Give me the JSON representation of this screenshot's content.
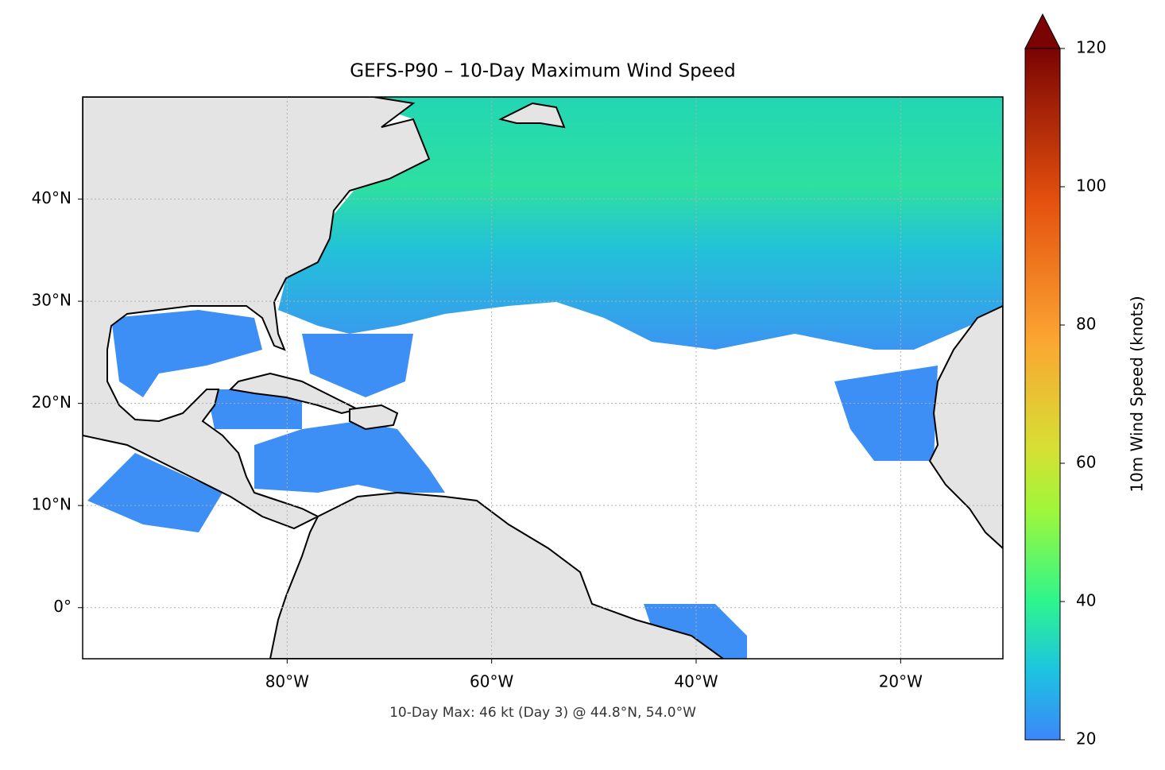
{
  "chart_data": {
    "type": "map",
    "title": "GEFS-P90 – 10-Day Maximum Wind Speed",
    "xlim": [
      -100,
      -10
    ],
    "ylim": [
      -5,
      50
    ],
    "xticks": [
      {
        "value": -80,
        "label": "80°W"
      },
      {
        "value": -60,
        "label": "60°W"
      },
      {
        "value": -40,
        "label": "40°W"
      },
      {
        "value": -20,
        "label": "20°W"
      }
    ],
    "yticks": [
      {
        "value": 0,
        "label": "0°"
      },
      {
        "value": 10,
        "label": "10°N"
      },
      {
        "value": 20,
        "label": "20°N"
      },
      {
        "value": 30,
        "label": "30°N"
      },
      {
        "value": 40,
        "label": "40°N"
      }
    ],
    "grid": true,
    "colorbar": {
      "label": "10m Wind Speed (knots)",
      "lim": [
        20,
        120
      ],
      "ticks": [
        20,
        40,
        60,
        80,
        100,
        120
      ]
    },
    "annotation": "10-Day Max: 46 kt (Day 3) @ 44.8°N, 54.0°W"
  }
}
